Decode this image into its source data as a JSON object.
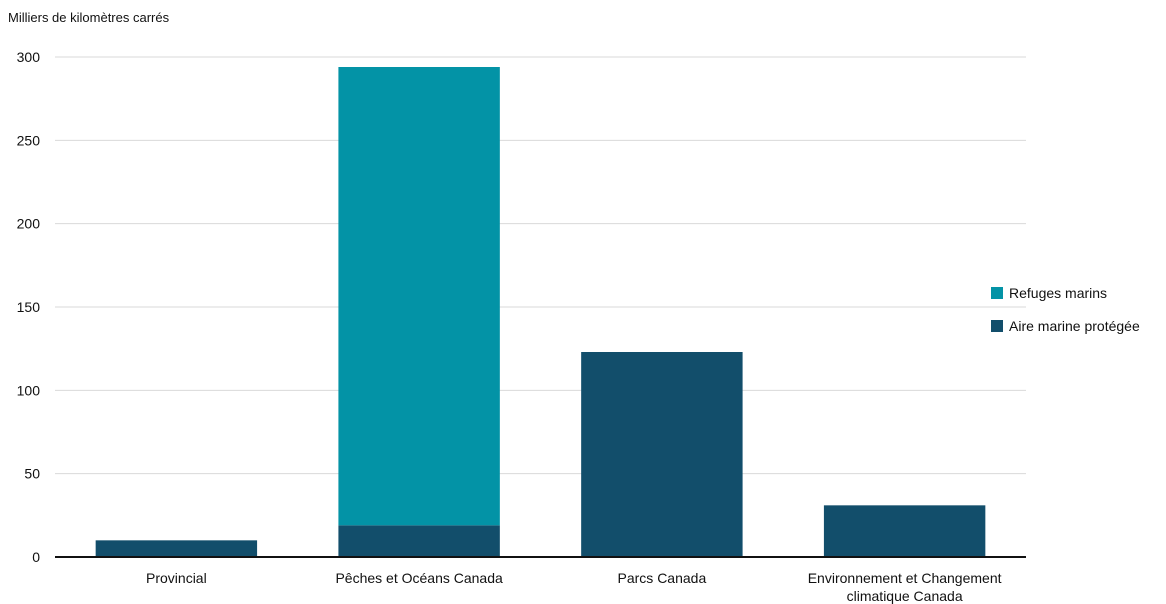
{
  "chart_data": {
    "type": "bar",
    "stacked": true,
    "ylabel": "Milliers de kilomètres carrés",
    "ylim": [
      0,
      300
    ],
    "yticks": [
      0,
      50,
      100,
      150,
      200,
      250,
      300
    ],
    "grid": true,
    "legend_position": "right",
    "categories": [
      [
        "Provincial"
      ],
      [
        "Pêches et Océans Canada"
      ],
      [
        "Parcs Canada"
      ],
      [
        "Environnement et Changement",
        "climatique Canada"
      ]
    ],
    "series": [
      {
        "name": "Aire marine protégée",
        "color": "#124e6b",
        "values": [
          10,
          19,
          123,
          31
        ]
      },
      {
        "name": "Refuges marins",
        "color": "#0393a6",
        "values": [
          0,
          275,
          0,
          0
        ]
      }
    ],
    "legend_order": [
      1,
      0
    ]
  }
}
